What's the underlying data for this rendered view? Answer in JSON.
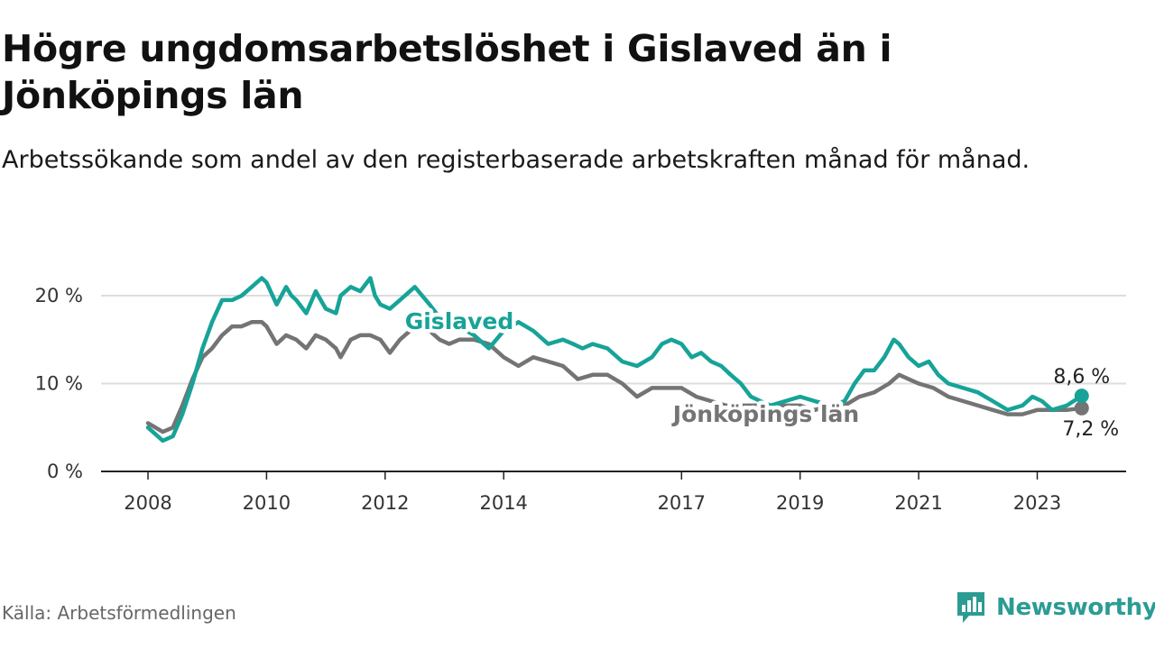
{
  "title": "Högre ungdomsarbetslöshet i Gislaved än i Jönköpings län",
  "subtitle": "Arbetssökande som andel av den registerbaserade arbetskraften månad för månad.",
  "source": "Källa: Arbetsförmedlingen",
  "brand": {
    "name": "Newsworthy",
    "color": "#2b9c93"
  },
  "colors": {
    "gislaved": "#17a398",
    "jonkoping": "#747474",
    "grid": "#dddddd",
    "axis": "#222222"
  },
  "chart_data": {
    "type": "line",
    "title": "Högre ungdomsarbetslöshet i Gislaved än i Jönköpings län",
    "xlabel": "",
    "ylabel": "",
    "xlim": [
      2008.0,
      2024.5
    ],
    "ylim": [
      0,
      20
    ],
    "y_ticks": [
      0,
      10,
      20
    ],
    "y_tick_labels": [
      "0 %",
      "10 %",
      "20 %"
    ],
    "x_ticks": [
      2008,
      2010,
      2012,
      2014,
      2017,
      2019,
      2021,
      2023
    ],
    "x_tick_labels": [
      "2008",
      "2010",
      "2012",
      "2014",
      "2017",
      "2019",
      "2021",
      "2023"
    ],
    "grid": true,
    "series": [
      {
        "name": "Gislaved",
        "label": "Gislaved",
        "end_label": "8,6 %",
        "x": [
          2008.0,
          2008.25,
          2008.42,
          2008.58,
          2008.75,
          2008.92,
          2009.08,
          2009.25,
          2009.42,
          2009.58,
          2009.75,
          2009.92,
          2010.0,
          2010.17,
          2010.33,
          2010.42,
          2010.5,
          2010.67,
          2010.83,
          2011.0,
          2011.17,
          2011.25,
          2011.42,
          2011.58,
          2011.75,
          2011.83,
          2011.92,
          2012.08,
          2012.25,
          2012.5,
          2012.75,
          2012.92,
          2013.08,
          2013.25,
          2013.5,
          2013.75,
          2014.0,
          2014.25,
          2014.5,
          2014.75,
          2015.0,
          2015.17,
          2015.33,
          2015.5,
          2015.75,
          2016.0,
          2016.25,
          2016.5,
          2016.67,
          2016.83,
          2017.0,
          2017.17,
          2017.33,
          2017.5,
          2017.67,
          2017.83,
          2018.0,
          2018.17,
          2018.33,
          2018.5,
          2018.75,
          2019.0,
          2019.25,
          2019.5,
          2019.75,
          2019.92,
          2020.08,
          2020.25,
          2020.42,
          2020.58,
          2020.67,
          2020.83,
          2021.0,
          2021.17,
          2021.33,
          2021.5,
          2021.75,
          2022.0,
          2022.25,
          2022.5,
          2022.75,
          2022.92,
          2023.08,
          2023.25,
          2023.5,
          2023.75
        ],
        "values": [
          5.0,
          3.5,
          4.0,
          6.5,
          10.0,
          14.0,
          17.0,
          19.5,
          19.5,
          20.0,
          21.0,
          22.0,
          21.5,
          19.0,
          21.0,
          20.0,
          19.5,
          18.0,
          20.5,
          18.5,
          18.0,
          20.0,
          21.0,
          20.5,
          22.0,
          20.0,
          19.0,
          18.5,
          19.5,
          21.0,
          19.0,
          17.5,
          17.0,
          16.5,
          15.5,
          14.0,
          16.0,
          17.0,
          16.0,
          14.5,
          15.0,
          14.5,
          14.0,
          14.5,
          14.0,
          12.5,
          12.0,
          13.0,
          14.5,
          15.0,
          14.5,
          13.0,
          13.5,
          12.5,
          12.0,
          11.0,
          10.0,
          8.5,
          8.0,
          7.5,
          8.0,
          8.5,
          8.0,
          7.5,
          8.0,
          10.0,
          11.5,
          11.5,
          13.0,
          15.0,
          14.5,
          13.0,
          12.0,
          12.5,
          11.0,
          10.0,
          9.5,
          9.0,
          8.0,
          7.0,
          7.5,
          8.5,
          8.0,
          7.0,
          7.5,
          8.6
        ]
      },
      {
        "name": "Jönköpings län",
        "label": "Jönköpings län",
        "end_label": "7,2 %",
        "x": [
          2008.0,
          2008.25,
          2008.42,
          2008.58,
          2008.75,
          2008.92,
          2009.08,
          2009.25,
          2009.42,
          2009.58,
          2009.75,
          2009.92,
          2010.0,
          2010.17,
          2010.33,
          2010.5,
          2010.67,
          2010.83,
          2011.0,
          2011.17,
          2011.25,
          2011.42,
          2011.58,
          2011.75,
          2011.92,
          2012.08,
          2012.25,
          2012.42,
          2012.58,
          2012.75,
          2012.92,
          2013.08,
          2013.25,
          2013.5,
          2013.75,
          2014.0,
          2014.25,
          2014.5,
          2014.75,
          2015.0,
          2015.25,
          2015.5,
          2015.75,
          2016.0,
          2016.25,
          2016.5,
          2016.75,
          2017.0,
          2017.25,
          2017.5,
          2017.75,
          2018.0,
          2018.25,
          2018.5,
          2018.75,
          2019.0,
          2019.25,
          2019.5,
          2019.75,
          2020.0,
          2020.25,
          2020.5,
          2020.67,
          2020.83,
          2021.0,
          2021.25,
          2021.5,
          2021.75,
          2022.0,
          2022.25,
          2022.5,
          2022.75,
          2023.0,
          2023.25,
          2023.5,
          2023.75
        ],
        "values": [
          5.5,
          4.5,
          5.0,
          7.5,
          10.5,
          13.0,
          14.0,
          15.5,
          16.5,
          16.5,
          17.0,
          17.0,
          16.5,
          14.5,
          15.5,
          15.0,
          14.0,
          15.5,
          15.0,
          14.0,
          13.0,
          15.0,
          15.5,
          15.5,
          15.0,
          13.5,
          15.0,
          16.0,
          16.5,
          16.0,
          15.0,
          14.5,
          15.0,
          15.0,
          14.5,
          13.0,
          12.0,
          13.0,
          12.5,
          12.0,
          10.5,
          11.0,
          11.0,
          10.0,
          8.5,
          9.5,
          9.5,
          9.5,
          8.5,
          8.0,
          7.5,
          7.5,
          7.5,
          7.5,
          7.5,
          7.5,
          7.0,
          7.5,
          7.5,
          8.5,
          9.0,
          10.0,
          11.0,
          10.5,
          10.0,
          9.5,
          8.5,
          8.0,
          7.5,
          7.0,
          6.5,
          6.5,
          7.0,
          7.0,
          7.0,
          7.2
        ]
      }
    ]
  }
}
